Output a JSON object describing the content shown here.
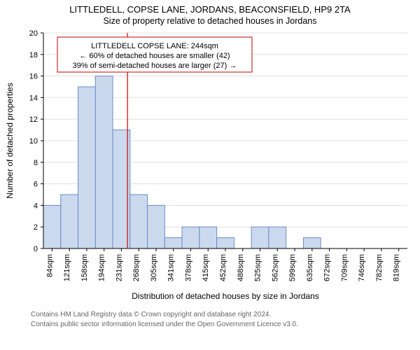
{
  "titles": {
    "main": "LITTLEDELL, COPSE LANE, JORDANS, BEACONSFIELD, HP9 2TA",
    "sub": "Size of property relative to detached houses in Jordans"
  },
  "axes": {
    "ylabel": "Number of detached properties",
    "xlabel": "Distribution of detached houses by size in Jordans",
    "ymin": 0,
    "ymax": 20,
    "ytick_step": 2,
    "tick_fontsize": 11,
    "label_fontsize": 12
  },
  "style": {
    "bar_fill": "#cbd9ef",
    "bar_stroke": "#6a8bc4",
    "ref_color": "#c00000",
    "background": "#ffffff",
    "bar_width_ratio": 1.0
  },
  "callout": {
    "lines": [
      "LITTLEDELL COPSE LANE: 244sqm",
      "← 60% of detached houses are smaller (42)",
      "39% of semi-detached houses are larger (27) →"
    ],
    "ref_x_label": "244"
  },
  "chart": {
    "type": "histogram",
    "categories": [
      "84sqm",
      "121sqm",
      "158sqm",
      "194sqm",
      "231sqm",
      "268sqm",
      "305sqm",
      "341sqm",
      "378sqm",
      "415sqm",
      "452sqm",
      "488sqm",
      "525sqm",
      "562sqm",
      "599sqm",
      "635sqm",
      "672sqm",
      "709sqm",
      "746sqm",
      "782sqm",
      "819sqm"
    ],
    "values": [
      4,
      5,
      15,
      16,
      11,
      5,
      4,
      1,
      2,
      2,
      1,
      0,
      2,
      2,
      0,
      1,
      0,
      0,
      0,
      0,
      0
    ]
  },
  "footer": {
    "line1": "Contains HM Land Registry data © Crown copyright and database right 2024.",
    "line2": "Contains public sector information licensed under the Open Government Licence v3.0."
  }
}
